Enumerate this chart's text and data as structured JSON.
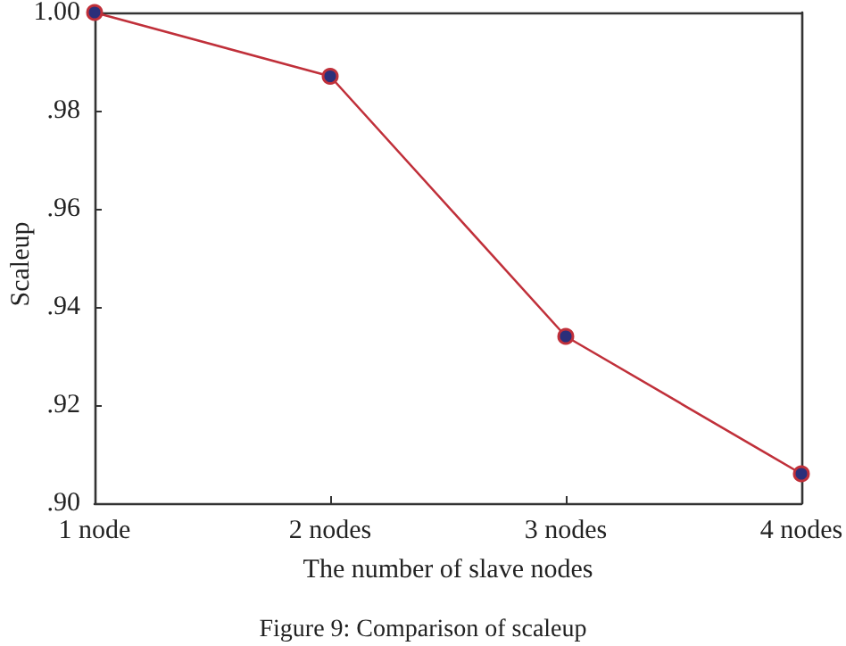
{
  "chart_data": {
    "type": "line",
    "categories": [
      "1 node",
      "2 nodes",
      "3 nodes",
      "4 nodes"
    ],
    "series": [
      {
        "color": "#c0303a",
        "values": [
          1.0,
          0.987,
          0.934,
          0.906
        ]
      }
    ],
    "xlabel": "The number of slave nodes",
    "ylabel": "Scaleup",
    "ylim": [
      0.9,
      1.0
    ],
    "yticks": [
      {
        "value": 0.9,
        "label": ".90"
      },
      {
        "value": 0.92,
        "label": ".92"
      },
      {
        "value": 0.94,
        "label": ".94"
      },
      {
        "value": 0.96,
        "label": ".96"
      },
      {
        "value": 0.98,
        "label": ".98"
      },
      {
        "value": 1.0,
        "label": "1.00"
      }
    ],
    "annotations": [
      "Figure 9: Comparison of scaleup"
    ],
    "marker": "circle",
    "line_style": "solid"
  }
}
